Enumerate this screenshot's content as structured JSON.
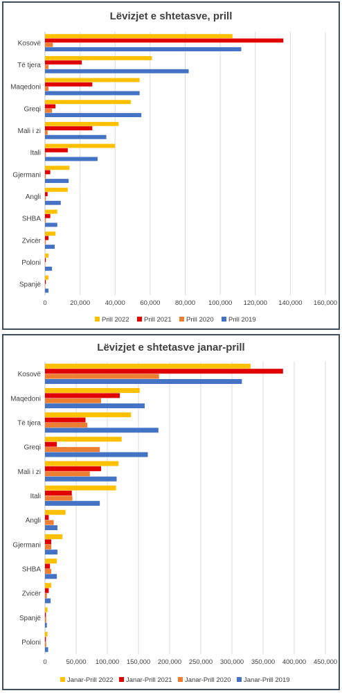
{
  "chart_data": [
    {
      "type": "bar",
      "orientation": "horizontal",
      "title": "Lëvizjet e shtetasve, prill",
      "categories": [
        "Kosovë",
        "Të tjera",
        "Maqedoni",
        "Greqi",
        "Mali i zi",
        "Itali",
        "Gjermani",
        "Angli",
        "SHBA",
        "Zvicër",
        "Poloni",
        "Spanjë"
      ],
      "xlim": [
        0,
        160000
      ],
      "xticks": [
        "0",
        "20,000",
        "40,000",
        "60,000",
        "80,000",
        "100,000",
        "120,000",
        "140,000",
        "160,000"
      ],
      "grid": true,
      "legend_position": "bottom",
      "series": [
        {
          "name": "Prill 2022",
          "color": "#ffc000",
          "values": [
            107000,
            61000,
            54000,
            49000,
            42000,
            40000,
            14000,
            13000,
            7000,
            6000,
            2000,
            2000
          ]
        },
        {
          "name": "Prill 2021",
          "color": "#e00000",
          "values": [
            136000,
            21000,
            27000,
            6000,
            27000,
            13000,
            3000,
            1500,
            3000,
            2000,
            500,
            500
          ]
        },
        {
          "name": "Prill 2020",
          "color": "#ed7d31",
          "values": [
            4500,
            2000,
            2000,
            4000,
            1500,
            500,
            500,
            500,
            500,
            500,
            200,
            200
          ]
        },
        {
          "name": "Prill 2019",
          "color": "#4472c4",
          "values": [
            112000,
            82000,
            54000,
            55000,
            35000,
            30000,
            13500,
            9000,
            7000,
            5500,
            4000,
            2000
          ]
        }
      ]
    },
    {
      "type": "bar",
      "orientation": "horizontal",
      "title": "Lëvizjet e shtetasve janar-prill",
      "categories": [
        "Kosovë",
        "Maqedoni",
        "Të tjera",
        "Greqi",
        "Mali i zi",
        "Itali",
        "Angli",
        "Gjermani",
        "SHBA",
        "Zvicër",
        "Spanjë",
        "Poloni"
      ],
      "xlim": [
        0,
        450000
      ],
      "xticks": [
        "0",
        "50,000",
        "100,000",
        "150,000",
        "200,000",
        "250,000",
        "300,000",
        "350,000",
        "400,000",
        "450,000"
      ],
      "grid": true,
      "legend_position": "bottom",
      "series": [
        {
          "name": "Janar-Prill 2022",
          "color": "#ffc000",
          "values": [
            330000,
            152000,
            138000,
            123000,
            118000,
            114000,
            33000,
            28000,
            19000,
            10000,
            4000,
            4000
          ]
        },
        {
          "name": "Janar-Prill 2021",
          "color": "#e00000",
          "values": [
            382000,
            120000,
            65000,
            19000,
            90000,
            43000,
            6000,
            10000,
            8000,
            6000,
            1500,
            1500
          ]
        },
        {
          "name": "Janar-Prill 2020",
          "color": "#ed7d31",
          "values": [
            183000,
            90000,
            68000,
            88000,
            72000,
            44000,
            14000,
            10000,
            10000,
            3000,
            2000,
            2000
          ]
        },
        {
          "name": "Janar-Prill 2019",
          "color": "#4472c4",
          "values": [
            316000,
            160000,
            182000,
            165000,
            115000,
            88000,
            20000,
            20000,
            19000,
            9000,
            3000,
            5000
          ]
        }
      ]
    }
  ]
}
